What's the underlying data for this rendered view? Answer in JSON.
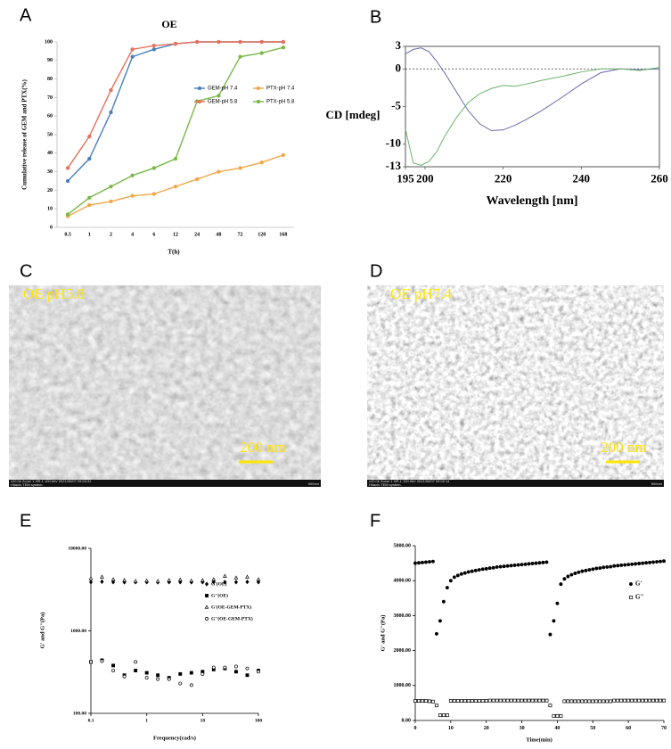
{
  "panel_letters": [
    "A",
    "B",
    "C",
    "D",
    "E",
    "F"
  ],
  "micrographs": [
    {
      "label": "OE pH5.8",
      "scale_bar": "200 nm",
      "footer": "x20.0k Zoom 1 HR-1 100.0kV 2021/05/07 09:04:31",
      "system": "Hitachi TEM system.",
      "scale_text": "500nm"
    },
    {
      "label": "OE pH7.4",
      "scale_bar": "200 nm",
      "footer": "x20.0k Zoom 1 HR-1 100.0kV 2021/05/07 09:02:14",
      "system": "Hitachi TEM system.",
      "scale_text": "500nm"
    }
  ],
  "chart_data": [
    {
      "type": "line",
      "title": "OE",
      "xlabel": "T(h)",
      "ylabel": "Cumulative release of GEM and PTX(%)",
      "categories": [
        "0.5",
        "1",
        "2",
        "4",
        "6",
        "12",
        "24",
        "48",
        "72",
        "120",
        "168"
      ],
      "ylim": [
        0,
        100
      ],
      "yticks": [
        0,
        10,
        20,
        30,
        40,
        50,
        60,
        70,
        80,
        90,
        100
      ],
      "markers": true,
      "legend": true,
      "series": [
        {
          "name": "GEM-pH 7.4",
          "color": "#4a7ebb",
          "values": [
            25,
            37,
            62,
            92,
            96,
            99,
            100,
            100,
            100,
            100,
            100
          ]
        },
        {
          "name": "PTX-pH 7.4",
          "color": "#f0a848",
          "values": [
            6,
            12,
            14,
            17,
            18,
            22,
            26,
            30,
            32,
            35,
            39
          ]
        },
        {
          "name": "GEM-pH 5.8",
          "color": "#e8705c",
          "values": [
            32,
            49,
            74,
            96,
            98,
            99,
            100,
            100,
            100,
            100,
            100
          ]
        },
        {
          "name": "PTX-pH 5.8",
          "color": "#78b848",
          "values": [
            7,
            16,
            22,
            28,
            32,
            37,
            68,
            71,
            92,
            94,
            97
          ]
        }
      ]
    },
    {
      "type": "line",
      "xlabel": "Wavelength [nm]",
      "ylabel": "CD [mdeg]",
      "x": [
        195,
        197,
        199,
        201,
        203,
        205,
        208,
        211,
        214,
        217,
        220,
        223,
        226,
        230,
        235,
        240,
        245,
        250,
        255,
        260
      ],
      "xlim": [
        195,
        260
      ],
      "xticks": [
        195,
        200,
        220,
        240,
        260
      ],
      "ylim": [
        -13,
        3
      ],
      "yticks": [
        3,
        0,
        -5,
        -10,
        -13
      ],
      "frame": true,
      "zero_line": true,
      "series": [
        {
          "color": "#6a6aae",
          "values": [
            2,
            2.6,
            2.8,
            2.3,
            1,
            -0.5,
            -3,
            -5.5,
            -7.3,
            -8.2,
            -8.1,
            -7.5,
            -6.7,
            -5.5,
            -3.8,
            -2,
            -0.5,
            0,
            -0.1,
            0
          ]
        },
        {
          "color": "#6ab46a",
          "values": [
            -8,
            -12.5,
            -12.8,
            -12.3,
            -11,
            -9,
            -6.5,
            -4.5,
            -3.3,
            -2.6,
            -2.2,
            -2.3,
            -2,
            -1.5,
            -1,
            -0.4,
            0,
            0,
            -0.2,
            0.2
          ]
        }
      ]
    },
    {
      "type": "scatter",
      "xlabel": "Frequency(rad/s)",
      "ylabel": "G' and G''(Pa)",
      "xlog": true,
      "ylog": true,
      "xlim": [
        0.1,
        100
      ],
      "xticks": [
        0.1,
        1,
        10,
        100
      ],
      "ylim": [
        100,
        10000
      ],
      "yticks": [
        {
          "value": 100,
          "label": "100.00"
        },
        {
          "value": 1000,
          "label": "1000.00"
        },
        {
          "value": 10000,
          "label": "10000.00"
        }
      ],
      "legend": true,
      "x": [
        0.1,
        0.158,
        0.251,
        0.398,
        0.631,
        1,
        1.58,
        2.51,
        3.98,
        6.31,
        10,
        15.8,
        25.1,
        39.8,
        63.1,
        100
      ],
      "series": [
        {
          "name": "G'(OE)",
          "color": "#000000",
          "marker": "diamond",
          "filled": true,
          "values": [
            3900,
            3950,
            3900,
            3880,
            3900,
            3900,
            3880,
            3900,
            3900,
            3880,
            3900,
            3920,
            3900,
            3900,
            3920,
            3900
          ]
        },
        {
          "name": "G''(OE)",
          "color": "#000000",
          "marker": "square",
          "filled": true,
          "values": [
            420,
            440,
            380,
            290,
            330,
            310,
            290,
            270,
            300,
            310,
            320,
            340,
            350,
            320,
            290,
            330
          ]
        },
        {
          "name": "G'(OE-GEM-PTX)",
          "color": "#000000",
          "marker": "triangle",
          "filled": false,
          "values": [
            4300,
            4500,
            4200,
            4100,
            4000,
            4050,
            4000,
            4100,
            4150,
            4050,
            4100,
            4200,
            4600,
            4400,
            4500,
            4200
          ]
        },
        {
          "name": "G''(OE-GEM-PTX)",
          "color": "#000000",
          "marker": "circle",
          "filled": false,
          "values": [
            420,
            430,
            330,
            280,
            420,
            270,
            260,
            260,
            230,
            220,
            300,
            360,
            360,
            370,
            350,
            320
          ]
        }
      ]
    },
    {
      "type": "scatter",
      "xlabel": "Time(min)",
      "ylabel": "G' and G''(Pa)",
      "xlim": [
        0,
        70
      ],
      "xticks": [
        0,
        10,
        20,
        30,
        40,
        50,
        60,
        70
      ],
      "ylim": [
        0,
        5000
      ],
      "yticks": [
        {
          "value": 0,
          "label": "0.00"
        },
        {
          "value": 1000,
          "label": "1000.00"
        },
        {
          "value": 2000,
          "label": "2000.00"
        },
        {
          "value": 3000,
          "label": "3000.00"
        },
        {
          "value": 4000,
          "label": "4000.00"
        },
        {
          "value": 5000,
          "label": "5000.00"
        }
      ],
      "legend": true,
      "x": [
        0,
        1,
        2,
        3,
        4,
        5,
        6,
        7,
        8,
        9,
        10,
        11,
        12,
        13,
        14,
        15,
        16,
        17,
        18,
        19,
        20,
        21,
        22,
        23,
        24,
        25,
        26,
        27,
        28,
        29,
        30,
        31,
        32,
        33,
        34,
        35,
        36,
        37,
        38,
        39,
        40,
        41,
        42,
        43,
        44,
        45,
        46,
        47,
        48,
        49,
        50,
        51,
        52,
        53,
        54,
        55,
        56,
        57,
        58,
        59,
        60,
        61,
        62,
        63,
        64,
        65,
        66,
        67,
        68,
        69,
        70
      ],
      "series": [
        {
          "name": "G'",
          "color": "#000000",
          "marker": "circle",
          "filled": true,
          "values": [
            4500,
            4510,
            4520,
            4530,
            4540,
            4550,
            2480,
            2850,
            3400,
            3800,
            4000,
            4100,
            4150,
            4190,
            4220,
            4250,
            4270,
            4290,
            4310,
            4330,
            4340,
            4360,
            4370,
            4390,
            4400,
            4410,
            4420,
            4430,
            4440,
            4450,
            4460,
            4470,
            4480,
            4490,
            4500,
            4510,
            4520,
            4530,
            2460,
            2850,
            3350,
            3900,
            4050,
            4120,
            4170,
            4210,
            4240,
            4270,
            4290,
            4310,
            4330,
            4350,
            4360,
            4380,
            4390,
            4400,
            4420,
            4430,
            4440,
            4450,
            4460,
            4470,
            4480,
            4490,
            4500,
            4510,
            4520,
            4530,
            4540,
            4550,
            4560
          ]
        },
        {
          "name": "G''",
          "color": "#000000",
          "marker": "square",
          "filled": false,
          "values": [
            560,
            560,
            560,
            560,
            550,
            540,
            430,
            150,
            150,
            150,
            560,
            560,
            560,
            560,
            560,
            560,
            560,
            560,
            560,
            560,
            560,
            570,
            570,
            570,
            570,
            570,
            570,
            570,
            570,
            570,
            570,
            570,
            570,
            570,
            570,
            570,
            570,
            570,
            430,
            130,
            130,
            130,
            550,
            550,
            550,
            550,
            550,
            550,
            550,
            550,
            550,
            550,
            550,
            550,
            550,
            550,
            570,
            570,
            570,
            570,
            570,
            570,
            570,
            570,
            570,
            570,
            570,
            570,
            570,
            570,
            570
          ]
        }
      ]
    }
  ]
}
